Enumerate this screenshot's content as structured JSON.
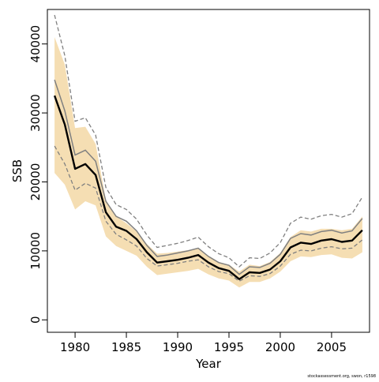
{
  "chart_data": {
    "type": "line",
    "xlabel": "Year",
    "ylabel": "SSB",
    "xlim": [
      1977.3,
      2008.7
    ],
    "ylim": [
      -1800,
      45000
    ],
    "xticks": [
      1980,
      1985,
      1990,
      1995,
      2000,
      2005
    ],
    "xtick_labels": [
      "1980",
      "1985",
      "1990",
      "1995",
      "2000",
      "2005"
    ],
    "yticks": [
      0,
      10000,
      20000,
      30000,
      40000
    ],
    "ytick_labels": [
      "0",
      "10000",
      "20000",
      "30000",
      "40000"
    ],
    "grid": false,
    "legend": "none",
    "x": [
      1978,
      1979,
      1980,
      1981,
      1982,
      1983,
      1984,
      1985,
      1986,
      1987,
      1988,
      1989,
      1990,
      1991,
      1992,
      1993,
      1994,
      1995,
      1996,
      1997,
      1998,
      1999,
      2000,
      2001,
      2002,
      2003,
      2004,
      2005,
      2006,
      2007,
      2008
    ],
    "series": [
      {
        "role": "band",
        "color": "#f5deb3",
        "upper": [
          41000,
          37000,
          27800,
          28000,
          25500,
          17400,
          15000,
          14000,
          12800,
          11000,
          9600,
          9700,
          9900,
          10100,
          10300,
          9300,
          8400,
          8000,
          7000,
          8000,
          7800,
          8400,
          9700,
          12000,
          13000,
          12800,
          13200,
          13200,
          13000,
          13200,
          15000
        ],
        "lower": [
          21300,
          19600,
          16000,
          17200,
          16600,
          12100,
          10700,
          10000,
          9300,
          7700,
          6500,
          6700,
          6900,
          7100,
          7400,
          6600,
          6000,
          5700,
          4700,
          5500,
          5500,
          6000,
          7000,
          8500,
          9200,
          9100,
          9400,
          9500,
          9000,
          8900,
          9800
        ]
      },
      {
        "role": "estimate",
        "color": "#000000",
        "values": [
          32500,
          28300,
          21900,
          22600,
          21000,
          15600,
          13500,
          12900,
          11700,
          9800,
          8300,
          8500,
          8700,
          9000,
          9400,
          8300,
          7500,
          7100,
          5900,
          6900,
          6800,
          7300,
          8500,
          10500,
          11200,
          11000,
          11500,
          11700,
          11300,
          11500,
          13000
        ]
      },
      {
        "role": "alternate-estimate",
        "color": "#808080",
        "values": [
          34800,
          30300,
          23900,
          24600,
          23000,
          17200,
          15000,
          14300,
          12900,
          10800,
          9200,
          9400,
          9700,
          10000,
          10400,
          9200,
          8300,
          7900,
          6600,
          7700,
          7600,
          8200,
          9500,
          11800,
          12500,
          12300,
          12800,
          13000,
          12600,
          12900,
          14700
        ]
      },
      {
        "role": "alternate-upper",
        "color": "#808080",
        "values": [
          44200,
          38300,
          28800,
          29300,
          26800,
          19200,
          16700,
          16000,
          14600,
          12300,
          10500,
          10800,
          11100,
          11500,
          12000,
          10600,
          9600,
          9000,
          7700,
          9000,
          8900,
          9700,
          11200,
          14000,
          14900,
          14600,
          15100,
          15300,
          14900,
          15400,
          17800
        ]
      },
      {
        "role": "alternate-lower",
        "color": "#808080",
        "values": [
          25200,
          22600,
          18800,
          19800,
          19100,
          14300,
          12400,
          11600,
          10700,
          8900,
          7800,
          8000,
          8200,
          8500,
          8700,
          7700,
          7000,
          6700,
          5600,
          6400,
          6300,
          6700,
          7800,
          9500,
          10100,
          10000,
          10400,
          10600,
          10300,
          10400,
          11600
        ]
      }
    ],
    "footer": "stockassessment.org, swon, r1598"
  }
}
